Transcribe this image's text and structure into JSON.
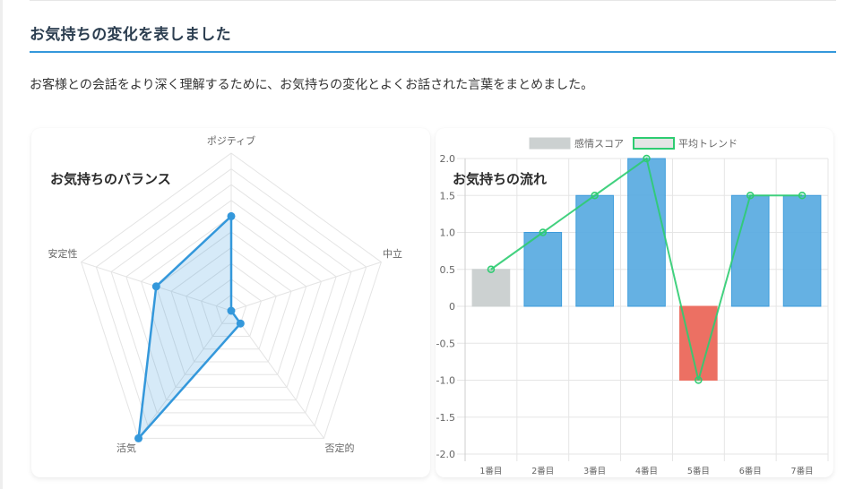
{
  "page": {
    "heading": "お気持ちの変化を表しました",
    "description": "お客様との会話をより深く理解するために、お気持ちの変化とよくお話された言葉をまとめました。",
    "accent_color": "#3498db"
  },
  "radar_card": {
    "title": "お気持ちのバランス"
  },
  "bar_card": {
    "title": "お気持ちの流れ"
  },
  "chart_data": [
    {
      "type": "radar",
      "title": "お気持ちのバランス",
      "categories": [
        "ポジティブ",
        "中立",
        "否定的",
        "活気",
        "安定性"
      ],
      "values": [
        0.6,
        0.0,
        0.1,
        1.0,
        0.5
      ],
      "rlim": [
        0,
        1
      ],
      "rings": 10,
      "line_color": "#3498db",
      "fill_color": "rgba(52,152,219,0.2)",
      "grid": true,
      "legend": "none"
    },
    {
      "type": "bar",
      "title": "お気持ちの流れ",
      "categories": [
        "1番目",
        "2番目",
        "3番目",
        "4番目",
        "5番目",
        "6番目",
        "7番目"
      ],
      "series": [
        {
          "name": "感情スコア",
          "type": "bar",
          "values": [
            0.5,
            1.0,
            1.5,
            2.0,
            -1.0,
            1.5,
            1.5
          ],
          "colors": [
            "#ccd1d1",
            "#5dade2",
            "#5dade2",
            "#5dade2",
            "#ec7063",
            "#5dade2",
            "#5dade2"
          ]
        },
        {
          "name": "平均トレンド",
          "type": "line",
          "values": [
            0.5,
            1.0,
            1.5,
            2.0,
            -1.0,
            1.5,
            1.5
          ],
          "color": "#2ecc71"
        }
      ],
      "ylim": [
        -2.0,
        2.0
      ],
      "yticks": [
        "2.0",
        "1.5",
        "1.0",
        "0.5",
        "0",
        "-0.5",
        "-1.0",
        "-1.5",
        "-2.0"
      ],
      "xlabel": "",
      "ylabel": "",
      "grid": true,
      "legend_position": "top",
      "legend": [
        {
          "label": "感情スコア",
          "swatch": "#ccd1d1",
          "border": "#ccd1d1"
        },
        {
          "label": "平均トレンド",
          "swatch": "#e5e5e5",
          "border": "#2ecc71"
        }
      ]
    }
  ]
}
